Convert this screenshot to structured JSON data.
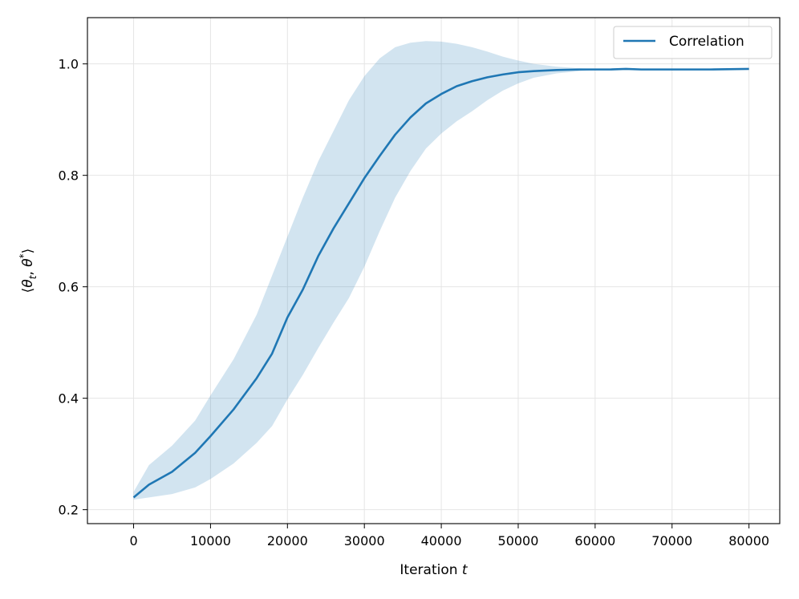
{
  "chart_data": {
    "type": "line",
    "title": "",
    "xlabel_prefix": "Iteration ",
    "xlabel_var": "t",
    "ylabel_open": "⟨",
    "ylabel_theta": "θ",
    "ylabel_sub": "t",
    "ylabel_sep": ", ",
    "ylabel_star": "*",
    "ylabel_close": "⟩",
    "xlim": [
      -6000,
      84000
    ],
    "ylim": [
      0.175,
      1.083
    ],
    "x_ticks": [
      0,
      10000,
      20000,
      30000,
      40000,
      50000,
      60000,
      70000,
      80000
    ],
    "x_tick_labels": [
      "0",
      "10000",
      "20000",
      "30000",
      "40000",
      "50000",
      "60000",
      "70000",
      "80000"
    ],
    "y_ticks": [
      0.2,
      0.4,
      0.6,
      0.8,
      1.0
    ],
    "y_tick_labels": [
      "0.2",
      "0.4",
      "0.6",
      "0.8",
      "1.0"
    ],
    "grid": true,
    "legend_position": "top-right",
    "colors": {
      "line": "#1f77b4",
      "band": "#1f77b4",
      "grid": "#e5e5e5",
      "axes": "#000000"
    },
    "series": [
      {
        "name": "Correlation",
        "x": [
          0,
          2000,
          5000,
          8000,
          10000,
          13000,
          16000,
          18000,
          20000,
          22000,
          24000,
          26000,
          28000,
          30000,
          32000,
          34000,
          36000,
          38000,
          40000,
          42000,
          44000,
          46000,
          48000,
          50000,
          52000,
          55000,
          58000,
          60000,
          62000,
          64000,
          66000,
          70000,
          75000,
          80000
        ],
        "y": [
          0.222,
          0.245,
          0.268,
          0.302,
          0.332,
          0.38,
          0.436,
          0.48,
          0.545,
          0.595,
          0.655,
          0.705,
          0.75,
          0.795,
          0.835,
          0.873,
          0.904,
          0.929,
          0.946,
          0.96,
          0.969,
          0.976,
          0.981,
          0.985,
          0.987,
          0.989,
          0.99,
          0.99,
          0.99,
          0.991,
          0.99,
          0.99,
          0.99,
          0.991
        ],
        "lower": [
          0.218,
          0.222,
          0.228,
          0.24,
          0.255,
          0.283,
          0.32,
          0.35,
          0.398,
          0.442,
          0.49,
          0.536,
          0.58,
          0.636,
          0.7,
          0.76,
          0.808,
          0.848,
          0.875,
          0.897,
          0.915,
          0.935,
          0.952,
          0.965,
          0.975,
          0.983,
          0.987,
          0.989,
          0.99,
          0.991,
          0.99,
          0.99,
          0.99,
          0.991
        ],
        "upper": [
          0.232,
          0.28,
          0.315,
          0.36,
          0.405,
          0.47,
          0.55,
          0.62,
          0.69,
          0.76,
          0.825,
          0.88,
          0.935,
          0.978,
          1.01,
          1.03,
          1.038,
          1.041,
          1.04,
          1.036,
          1.03,
          1.022,
          1.013,
          1.006,
          1.0,
          0.995,
          0.992,
          0.991,
          0.991,
          0.991,
          0.99,
          0.99,
          0.99,
          0.991
        ]
      }
    ]
  }
}
